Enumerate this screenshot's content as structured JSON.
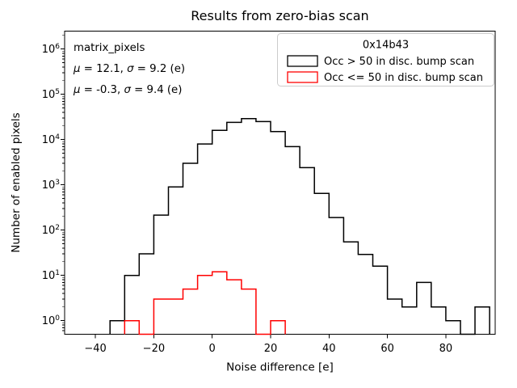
{
  "chart_data": {
    "type": "histogram-step",
    "title": "Results from zero-bias scan",
    "xlabel": "Noise difference [e]",
    "ylabel": "Number of enabled pixels",
    "x_axis": {
      "ticks": [
        -40,
        -20,
        0,
        20,
        40,
        60,
        80
      ],
      "tick_labels": [
        "−40",
        "−20",
        "0",
        "20",
        "40",
        "60",
        "80"
      ],
      "lim": [
        -50.5,
        96.9
      ]
    },
    "y_axis": {
      "scale": "log",
      "tick_exponents": [
        0,
        1,
        2,
        3,
        4,
        5,
        6
      ],
      "tick_base": "10",
      "lim": [
        0.5,
        2300000
      ]
    },
    "grid": false,
    "legend_position": "upper right",
    "bin_width": 5,
    "series": [
      {
        "name": "Occ > 50 in disc. bump scan",
        "color": "#000000",
        "bin_start": -35,
        "counts": [
          1,
          10,
          30,
          215,
          900,
          3000,
          8000,
          16000,
          24000,
          29000,
          25000,
          15000,
          7000,
          2400,
          650,
          190,
          55,
          29,
          16,
          3,
          2,
          7,
          2,
          1,
          0,
          2
        ]
      },
      {
        "name": "Occ <= 50 in disc. bump scan",
        "color": "#ff0000",
        "bin_start": -30,
        "counts": [
          1,
          0,
          3,
          3,
          5,
          10,
          12,
          8,
          5,
          0,
          1
        ]
      }
    ],
    "legend": {
      "title": "0x14b43"
    },
    "annotations": [
      {
        "text": "matrix_pixels",
        "color": "#000000"
      },
      {
        "text": "μ = 12.1, σ = 9.2 (e)",
        "color": "#000000"
      },
      {
        "text": "μ = -0.3, σ = 9.4 (e)",
        "color": "#ff0000"
      }
    ],
    "frame_color": "#cccccc"
  }
}
